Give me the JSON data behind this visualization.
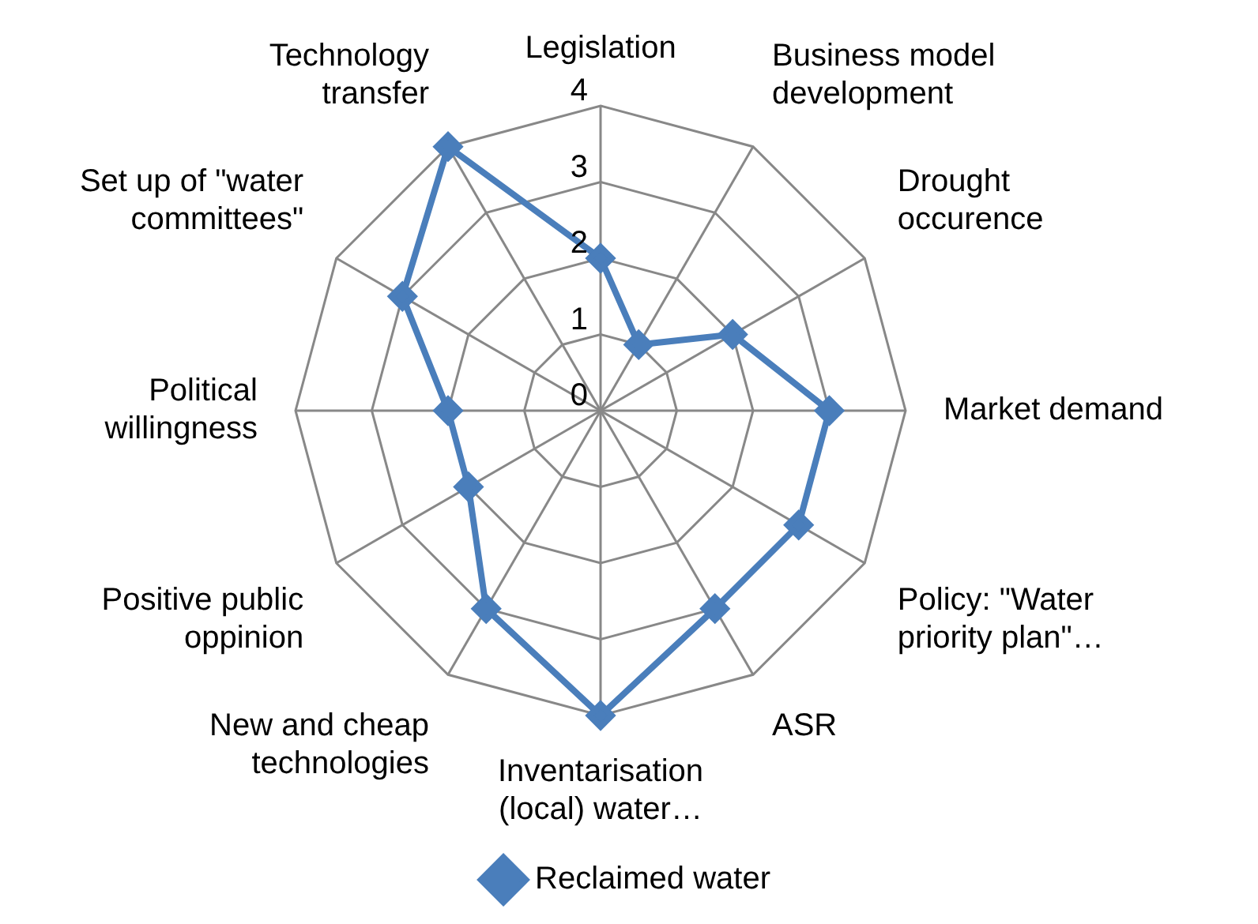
{
  "chart_data": {
    "type": "radar",
    "categories": [
      "Legislation",
      "Business model development",
      "Drought occurence",
      "Market demand",
      "Policy: \"Water priority plan\"…",
      "ASR",
      "Inventarisation (local) water…",
      "New and cheap technologies",
      "Positive public oppinion",
      "Political willingness",
      "Set up of \"water committees\"",
      "Technology transfer"
    ],
    "series": [
      {
        "name": "Reclaimed water",
        "color": "#4a7ebb",
        "values": [
          2,
          1,
          2,
          3,
          3,
          3,
          4,
          3,
          2,
          2,
          3,
          4
        ]
      }
    ],
    "ylim": [
      0,
      4
    ],
    "yticks": [
      0,
      1,
      2,
      3,
      4
    ],
    "grid": true,
    "legend": "bottom",
    "marker": "diamond",
    "line_style": "solid"
  }
}
